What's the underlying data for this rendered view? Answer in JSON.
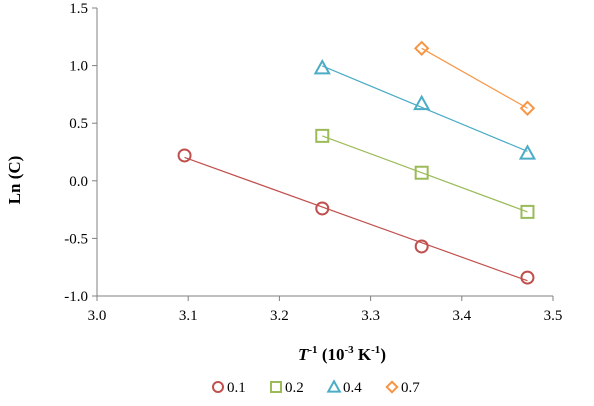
{
  "chart_data": {
    "type": "scatter",
    "title": "",
    "xlabel_main": "T",
    "xlabel_sup": "-1",
    "xlabel_unit": " (10",
    "xlabel_unit_sup": "-3",
    "xlabel_unit_tail": " K",
    "xlabel_unit_tail_sup": "-1",
    "xlabel_close": ")",
    "ylabel": "Ln (C)",
    "xlim": [
      3.0,
      3.5
    ],
    "ylim": [
      -1.0,
      1.5
    ],
    "x_ticks": [
      "3.0",
      "3.1",
      "3.2",
      "3.3",
      "3.4",
      "3.5"
    ],
    "y_ticks": [
      "1.5",
      "1.0",
      "0.5",
      "0.0",
      "-0.5",
      "-1.0"
    ],
    "grid": false,
    "legend_position": "bottom",
    "series": [
      {
        "name": "0.1",
        "marker": "circle",
        "color": "#c0504d",
        "x": [
          3.096,
          3.247,
          3.356,
          3.472
        ],
        "y": [
          0.22,
          -0.24,
          -0.57,
          -0.84
        ]
      },
      {
        "name": "0.2",
        "marker": "square",
        "color": "#9bbb59",
        "x": [
          3.247,
          3.356,
          3.472
        ],
        "y": [
          0.39,
          0.07,
          -0.27
        ]
      },
      {
        "name": "0.4",
        "marker": "triangle",
        "color": "#4bacc6",
        "x": [
          3.247,
          3.356,
          3.472
        ],
        "y": [
          0.98,
          0.67,
          0.24
        ]
      },
      {
        "name": "0.7",
        "marker": "diamond",
        "color": "#f79646",
        "x": [
          3.356,
          3.472
        ],
        "y": [
          1.15,
          0.63
        ]
      }
    ]
  }
}
